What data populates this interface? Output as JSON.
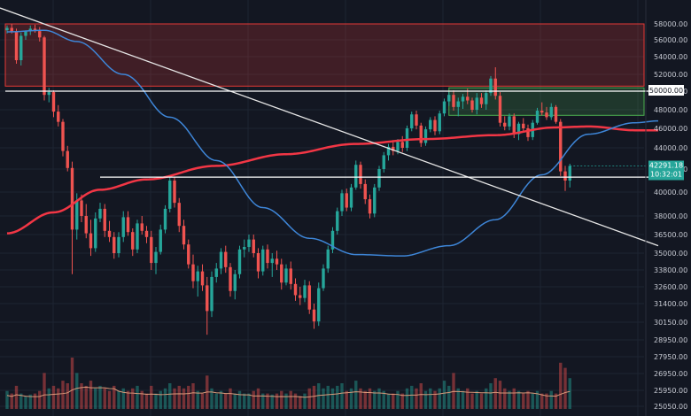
{
  "chart_data": {
    "type": "candlestick",
    "y_axis_labels": [
      "58000.00",
      "56000.00",
      "54000.00",
      "52000.00",
      "50000.00",
      "48000.00",
      "46000.00",
      "44000.00",
      "42000.00",
      "40000.00",
      "38000.00",
      "36500.00",
      "35000.00",
      "33800.00",
      "32600.00",
      "31400.00",
      "30150.00",
      "28950.00",
      "27950.00",
      "26950.00",
      "25950.00",
      "25050.00"
    ],
    "price_tag": {
      "value": "42291.18",
      "timer": "10:32:01",
      "price": 42291.18
    },
    "level_tag": {
      "label": "50000.00",
      "price": 50000
    },
    "zones": [
      {
        "name": "resistance-zone",
        "from": 50600,
        "to": 58000,
        "color": "#e53935"
      },
      {
        "name": "consolidation-zone",
        "from": 47400,
        "to": 50400,
        "color": "#4caf50"
      }
    ],
    "horizontal_levels": [
      50000,
      41300
    ],
    "trendline": {
      "start": {
        "candle": 0,
        "price": 60000
      },
      "end": {
        "candle": 140,
        "price": 35600
      }
    },
    "moving_averages": [
      {
        "name": "ma-200",
        "color": "#f23645",
        "values": [
          [
            0,
            36600
          ],
          [
            10,
            38300
          ],
          [
            20,
            40200
          ],
          [
            30,
            41100
          ],
          [
            45,
            42300
          ],
          [
            60,
            43400
          ],
          [
            75,
            44400
          ],
          [
            90,
            44900
          ],
          [
            105,
            45300
          ],
          [
            118,
            46100
          ],
          [
            125,
            46200
          ],
          [
            135,
            45800
          ],
          [
            140,
            45800
          ]
        ]
      },
      {
        "name": "ma-50",
        "color": "#3e86d8",
        "values": [
          [
            0,
            57000
          ],
          [
            8,
            57200
          ],
          [
            15,
            55800
          ],
          [
            25,
            52000
          ],
          [
            35,
            47200
          ],
          [
            45,
            42800
          ],
          [
            55,
            38700
          ],
          [
            65,
            36200
          ],
          [
            75,
            34900
          ],
          [
            85,
            34800
          ],
          [
            95,
            35600
          ],
          [
            105,
            37700
          ],
          [
            115,
            41500
          ],
          [
            125,
            45400
          ],
          [
            135,
            46600
          ],
          [
            140,
            46800
          ]
        ]
      }
    ],
    "ohlc": [
      [
        57200,
        57800,
        56800,
        57500
      ],
      [
        57500,
        58000,
        56800,
        57000
      ],
      [
        57000,
        57400,
        53200,
        53600
      ],
      [
        53600,
        56900,
        53000,
        56500
      ],
      [
        56500,
        57200,
        56000,
        57100
      ],
      [
        57100,
        57800,
        56600,
        57400
      ],
      [
        57400,
        57900,
        56900,
        57100
      ],
      [
        57100,
        57600,
        55800,
        56300
      ],
      [
        56300,
        56500,
        49000,
        49600
      ],
      [
        49600,
        50400,
        48800,
        49900
      ],
      [
        49900,
        50100,
        47200,
        47800
      ],
      [
        47800,
        48500,
        46200,
        46700
      ],
      [
        46700,
        47000,
        43200,
        43700
      ],
      [
        43700,
        44200,
        41800,
        42100
      ],
      [
        42100,
        42700,
        33500,
        36900
      ],
      [
        36900,
        39900,
        36100,
        39300
      ],
      [
        39300,
        39800,
        37500,
        38000
      ],
      [
        38000,
        39000,
        36200,
        36600
      ],
      [
        36600,
        37700,
        34800,
        35400
      ],
      [
        35400,
        38300,
        35100,
        37800
      ],
      [
        37800,
        39100,
        37500,
        38600
      ],
      [
        38600,
        39000,
        36300,
        36800
      ],
      [
        36800,
        37600,
        35900,
        36300
      ],
      [
        36300,
        36700,
        34600,
        35000
      ],
      [
        35000,
        36700,
        34700,
        36300
      ],
      [
        36300,
        38400,
        35900,
        37900
      ],
      [
        37900,
        38400,
        36400,
        36700
      ],
      [
        36700,
        37000,
        34800,
        35300
      ],
      [
        35300,
        37700,
        35000,
        37400
      ],
      [
        37400,
        38000,
        36500,
        36800
      ],
      [
        36800,
        37200,
        35800,
        36300
      ],
      [
        36300,
        36800,
        33800,
        34300
      ],
      [
        34300,
        35500,
        33500,
        35100
      ],
      [
        35100,
        37300,
        34900,
        36900
      ],
      [
        36900,
        38900,
        36600,
        38600
      ],
      [
        38600,
        41400,
        38300,
        41000
      ],
      [
        41000,
        41300,
        38700,
        39100
      ],
      [
        39100,
        39500,
        36700,
        37200
      ],
      [
        37200,
        37700,
        35300,
        35700
      ],
      [
        35700,
        36100,
        33900,
        34200
      ],
      [
        34200,
        34900,
        32500,
        33000
      ],
      [
        33000,
        34100,
        31900,
        33700
      ],
      [
        33700,
        34200,
        32300,
        32700
      ],
      [
        32700,
        33300,
        29300,
        30900
      ],
      [
        30900,
        33700,
        30500,
        33300
      ],
      [
        33300,
        34300,
        32900,
        33900
      ],
      [
        33900,
        35400,
        33500,
        35100
      ],
      [
        35100,
        35600,
        33600,
        34000
      ],
      [
        34000,
        34300,
        31900,
        32300
      ],
      [
        32300,
        33800,
        31700,
        33500
      ],
      [
        33500,
        35600,
        33200,
        35300
      ],
      [
        35300,
        36100,
        34700,
        35500
      ],
      [
        35500,
        36500,
        35100,
        36100
      ],
      [
        36100,
        36500,
        34700,
        35000
      ],
      [
        35000,
        35400,
        33200,
        33700
      ],
      [
        33700,
        35600,
        33400,
        35300
      ],
      [
        35300,
        35700,
        33900,
        34300
      ],
      [
        34300,
        35000,
        33300,
        34600
      ],
      [
        34600,
        35200,
        33800,
        34200
      ],
      [
        34200,
        34600,
        32400,
        32900
      ],
      [
        32900,
        34200,
        32700,
        33900
      ],
      [
        33900,
        34400,
        32400,
        32800
      ],
      [
        32800,
        33200,
        31600,
        32000
      ],
      [
        32000,
        32600,
        31300,
        31800
      ],
      [
        31800,
        33100,
        31500,
        32700
      ],
      [
        32700,
        33000,
        30700,
        31000
      ],
      [
        31000,
        31400,
        29700,
        30200
      ],
      [
        30200,
        32900,
        29900,
        32500
      ],
      [
        32500,
        34200,
        32300,
        33900
      ],
      [
        33900,
        35600,
        33600,
        35300
      ],
      [
        35300,
        37100,
        35000,
        36800
      ],
      [
        36800,
        38700,
        36500,
        38400
      ],
      [
        38400,
        40200,
        38000,
        39900
      ],
      [
        39900,
        40300,
        38400,
        38700
      ],
      [
        38700,
        40700,
        38400,
        40400
      ],
      [
        40400,
        42800,
        40200,
        42400
      ],
      [
        42400,
        42700,
        40300,
        40700
      ],
      [
        40700,
        41100,
        39000,
        39400
      ],
      [
        39400,
        39800,
        37800,
        38200
      ],
      [
        38200,
        40700,
        37900,
        40400
      ],
      [
        40400,
        42300,
        40100,
        42000
      ],
      [
        42000,
        43600,
        41700,
        43300
      ],
      [
        43300,
        44400,
        42800,
        44100
      ],
      [
        44100,
        44800,
        43300,
        43700
      ],
      [
        43700,
        44900,
        43400,
        44600
      ],
      [
        44600,
        45200,
        43600,
        44000
      ],
      [
        44000,
        46300,
        43700,
        46000
      ],
      [
        46000,
        47800,
        45700,
        47500
      ],
      [
        47500,
        47900,
        45900,
        46300
      ],
      [
        46300,
        46600,
        44100,
        44500
      ],
      [
        44500,
        46200,
        44200,
        45900
      ],
      [
        45900,
        47200,
        45600,
        46900
      ],
      [
        46900,
        47300,
        45300,
        45700
      ],
      [
        45700,
        47900,
        45400,
        47600
      ],
      [
        47600,
        49200,
        47300,
        48900
      ],
      [
        48900,
        49900,
        48400,
        49600
      ],
      [
        49600,
        50100,
        47900,
        48300
      ],
      [
        48300,
        49300,
        47300,
        48900
      ],
      [
        48900,
        49700,
        48100,
        49400
      ],
      [
        49400,
        50300,
        48600,
        49000
      ],
      [
        49000,
        49300,
        47700,
        48000
      ],
      [
        48000,
        49800,
        47500,
        49300
      ],
      [
        49300,
        49800,
        48200,
        48600
      ],
      [
        48600,
        50100,
        48000,
        49800
      ],
      [
        49800,
        51800,
        49500,
        51500
      ],
      [
        51500,
        52800,
        49100,
        49500
      ],
      [
        49500,
        49900,
        46200,
        46600
      ],
      [
        46600,
        47300,
        45800,
        46200
      ],
      [
        46200,
        47600,
        45800,
        47300
      ],
      [
        47300,
        47600,
        45000,
        45400
      ],
      [
        45400,
        46700,
        44800,
        46500
      ],
      [
        46500,
        47100,
        45600,
        46000
      ],
      [
        46000,
        46400,
        44700,
        45100
      ],
      [
        45100,
        46900,
        44800,
        46600
      ],
      [
        46600,
        48200,
        46400,
        47900
      ],
      [
        47900,
        48800,
        47400,
        47700
      ],
      [
        47700,
        48300,
        46900,
        47200
      ],
      [
        47200,
        48700,
        46900,
        48300
      ],
      [
        48300,
        48500,
        46500,
        46700
      ],
      [
        46700,
        47000,
        41400,
        41800
      ],
      [
        41800,
        42300,
        40100,
        41000
      ],
      [
        41000,
        42500,
        40400,
        42291.18
      ]
    ],
    "volume_fractions": [
      0.35,
      0.3,
      0.45,
      0.3,
      0.25,
      0.28,
      0.3,
      0.35,
      0.7,
      0.4,
      0.45,
      0.4,
      0.55,
      0.5,
      1.0,
      0.7,
      0.5,
      0.45,
      0.55,
      0.4,
      0.45,
      0.4,
      0.35,
      0.45,
      0.35,
      0.4,
      0.35,
      0.4,
      0.45,
      0.35,
      0.3,
      0.45,
      0.3,
      0.35,
      0.4,
      0.5,
      0.4,
      0.45,
      0.4,
      0.45,
      0.5,
      0.35,
      0.3,
      0.65,
      0.4,
      0.3,
      0.35,
      0.3,
      0.4,
      0.3,
      0.35,
      0.3,
      0.3,
      0.35,
      0.4,
      0.3,
      0.3,
      0.28,
      0.3,
      0.35,
      0.3,
      0.35,
      0.3,
      0.25,
      0.3,
      0.4,
      0.45,
      0.5,
      0.4,
      0.45,
      0.4,
      0.45,
      0.5,
      0.35,
      0.4,
      0.55,
      0.4,
      0.35,
      0.4,
      0.35,
      0.4,
      0.35,
      0.3,
      0.3,
      0.35,
      0.3,
      0.4,
      0.45,
      0.4,
      0.5,
      0.35,
      0.4,
      0.35,
      0.4,
      0.55,
      0.45,
      0.7,
      0.4,
      0.35,
      0.4,
      0.3,
      0.35,
      0.3,
      0.4,
      0.5,
      0.6,
      0.55,
      0.4,
      0.35,
      0.4,
      0.35,
      0.3,
      0.35,
      0.3,
      0.35,
      0.3,
      0.3,
      0.35,
      0.3,
      0.9,
      0.8,
      0.6
    ],
    "colors": {
      "up": "#26a69a",
      "down": "#ef5350",
      "background": "#131722",
      "grid": "#1e2432",
      "text": "#c7cad3",
      "trendline": "#e6e6e6",
      "level": "#ffffff",
      "volume_ma": "#d99a7a"
    }
  }
}
